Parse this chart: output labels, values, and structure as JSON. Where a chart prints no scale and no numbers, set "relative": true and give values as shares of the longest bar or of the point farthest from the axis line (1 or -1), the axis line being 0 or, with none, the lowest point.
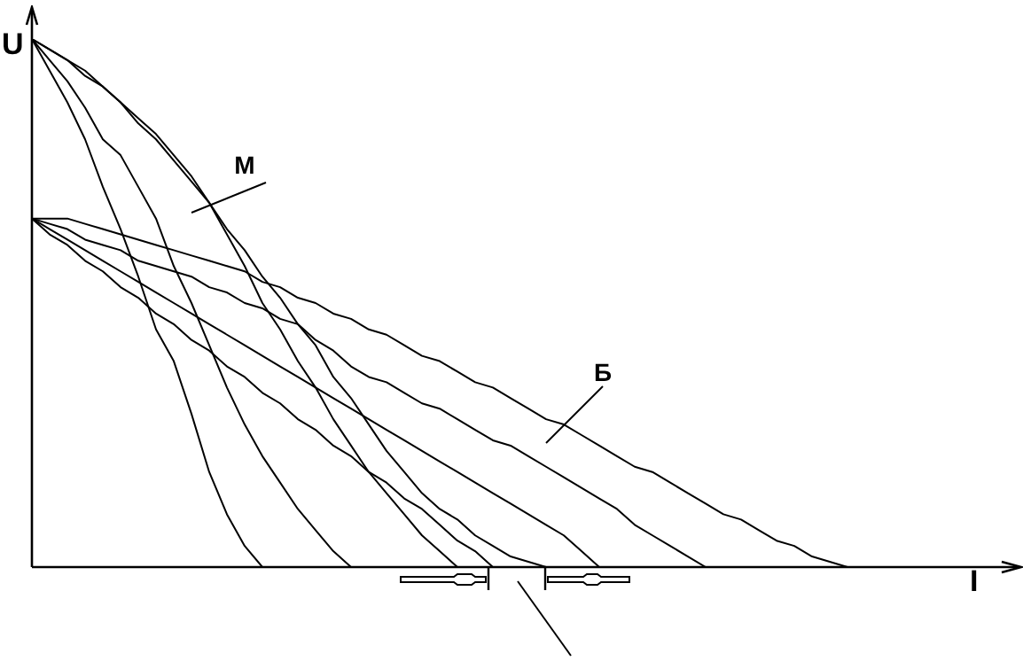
{
  "chart_data": {
    "type": "line",
    "xlabel": "I",
    "ylabel": "U",
    "relative": true,
    "legend": false,
    "marker": "none",
    "line_style": "solid",
    "categories": [
      null,
      null,
      null,
      null,
      null,
      null,
      null,
      null,
      null,
      null,
      null,
      null,
      null,
      null,
      null,
      null,
      null,
      null,
      null,
      null,
      null,
      null,
      null,
      null,
      null,
      null,
      null,
      null,
      null,
      null,
      null,
      null,
      null,
      null,
      null,
      null,
      null,
      null,
      null,
      null,
      null,
      null,
      null,
      null,
      null,
      null,
      null,
      null,
      null,
      null,
      null,
      null,
      null,
      null,
      null,
      null
    ],
    "annotations": [
      "М",
      "Б"
    ],
    "series": [
      {
        "color": "#000000",
        "values": [
          1,
          0.94,
          0.88,
          0.81,
          0.72,
          0.64,
          0.55,
          0.45,
          0.39,
          0.29,
          0.18,
          0.1,
          0.04,
          0,
          null,
          null,
          null,
          null,
          null,
          null,
          null,
          null,
          null,
          null,
          null,
          null,
          null,
          null,
          null,
          null,
          null,
          null,
          null,
          null,
          null,
          null,
          null,
          null,
          null,
          null,
          null,
          null,
          null,
          null,
          null,
          null,
          null,
          null,
          null,
          null,
          null,
          null,
          null,
          null,
          null,
          null
        ]
      },
      {
        "color": "#000000",
        "values": [
          1,
          0.96,
          0.92,
          0.87,
          0.81,
          0.78,
          0.72,
          0.66,
          0.57,
          0.5,
          0.42,
          0.34,
          0.27,
          0.21,
          0.16,
          0.11,
          0.07,
          0.03,
          0,
          null,
          null,
          null,
          null,
          null,
          null,
          null,
          null,
          null,
          null,
          null,
          null,
          null,
          null,
          null,
          null,
          null,
          null,
          null,
          null,
          null,
          null,
          null,
          null,
          null,
          null,
          null,
          null,
          null,
          null,
          null,
          null,
          null,
          null,
          null,
          null,
          null
        ]
      },
      {
        "color": "#000000",
        "values": [
          1,
          0.98,
          0.96,
          0.93,
          0.91,
          0.88,
          0.85,
          0.82,
          0.78,
          0.74,
          0.69,
          0.63,
          0.57,
          0.5,
          0.45,
          0.39,
          0.34,
          0.28,
          0.23,
          0.18,
          0.14,
          0.1,
          0.06,
          0.03,
          0,
          null,
          null,
          null,
          null,
          null,
          null,
          null,
          null,
          null,
          null,
          null,
          null,
          null,
          null,
          null,
          null,
          null,
          null,
          null,
          null,
          null,
          null,
          null,
          null,
          null,
          null,
          null,
          null,
          null,
          null,
          null
        ]
      },
      {
        "color": "#000000",
        "values": [
          1,
          0.98,
          0.96,
          0.94,
          0.91,
          0.88,
          0.84,
          0.81,
          0.77,
          0.73,
          0.69,
          0.64,
          0.6,
          0.55,
          0.51,
          0.46,
          0.42,
          0.36,
          0.32,
          0.27,
          0.22,
          0.18,
          0.14,
          0.11,
          0.09,
          0.06,
          0.04,
          0.02,
          0.01,
          0,
          null,
          null,
          null,
          null,
          null,
          null,
          null,
          null,
          null,
          null,
          null,
          null,
          null,
          null,
          null,
          null,
          null,
          null,
          null,
          null,
          null,
          null,
          null,
          null,
          null,
          null
        ]
      },
      {
        "color": "#000000",
        "values": [
          0.66,
          0.66,
          0.66,
          0.65,
          0.64,
          0.63,
          0.62,
          0.61,
          0.6,
          0.59,
          0.58,
          0.57,
          0.56,
          0.54,
          0.53,
          0.51,
          0.5,
          0.48,
          0.47,
          0.45,
          0.44,
          0.42,
          0.4,
          0.39,
          0.37,
          0.35,
          0.34,
          0.32,
          0.3,
          0.28,
          0.27,
          0.25,
          0.23,
          0.21,
          0.19,
          0.18,
          0.16,
          0.14,
          0.12,
          0.1,
          0.09,
          0.07,
          0.05,
          0.04,
          0.02,
          0.01,
          0,
          null,
          null,
          null,
          null,
          null,
          null,
          null,
          null,
          null
        ]
      },
      {
        "color": "#000000",
        "values": [
          0.66,
          0.65,
          0.64,
          0.62,
          0.61,
          0.6,
          0.58,
          0.57,
          0.56,
          0.55,
          0.53,
          0.52,
          0.5,
          0.49,
          0.47,
          0.46,
          0.43,
          0.41,
          0.38,
          0.36,
          0.35,
          0.33,
          0.31,
          0.3,
          0.28,
          0.26,
          0.24,
          0.23,
          0.21,
          0.19,
          0.17,
          0.15,
          0.13,
          0.11,
          0.08,
          0.06,
          0.04,
          0.02,
          0,
          null,
          null,
          null,
          null,
          null,
          null,
          null,
          null,
          null,
          null,
          null,
          null,
          null,
          null,
          null,
          null,
          null
        ]
      },
      {
        "color": "#000000",
        "values": [
          0.66,
          0.64,
          0.62,
          0.6,
          0.58,
          0.56,
          0.54,
          0.52,
          0.5,
          0.48,
          0.46,
          0.44,
          0.42,
          0.4,
          0.38,
          0.36,
          0.34,
          0.32,
          0.3,
          0.28,
          0.26,
          0.24,
          0.22,
          0.2,
          0.18,
          0.16,
          0.14,
          0.12,
          0.1,
          0.08,
          0.06,
          0.03,
          0,
          null,
          null,
          null,
          null,
          null,
          null,
          null,
          null,
          null,
          null,
          null,
          null,
          null,
          null,
          null,
          null,
          null,
          null,
          null,
          null,
          null,
          null,
          null
        ]
      },
      {
        "color": "#000000",
        "values": [
          0.66,
          0.63,
          0.61,
          0.58,
          0.56,
          0.53,
          0.51,
          0.48,
          0.46,
          0.43,
          0.41,
          0.38,
          0.36,
          0.33,
          0.31,
          0.28,
          0.26,
          0.23,
          0.21,
          0.18,
          0.16,
          0.13,
          0.11,
          0.08,
          0.05,
          0.03,
          0,
          null,
          null,
          null,
          null,
          null,
          null,
          null,
          null,
          null,
          null,
          null,
          null,
          null,
          null,
          null,
          null,
          null,
          null,
          null,
          null,
          null,
          null,
          null,
          null,
          null,
          null,
          null,
          null,
          null
        ]
      }
    ]
  }
}
